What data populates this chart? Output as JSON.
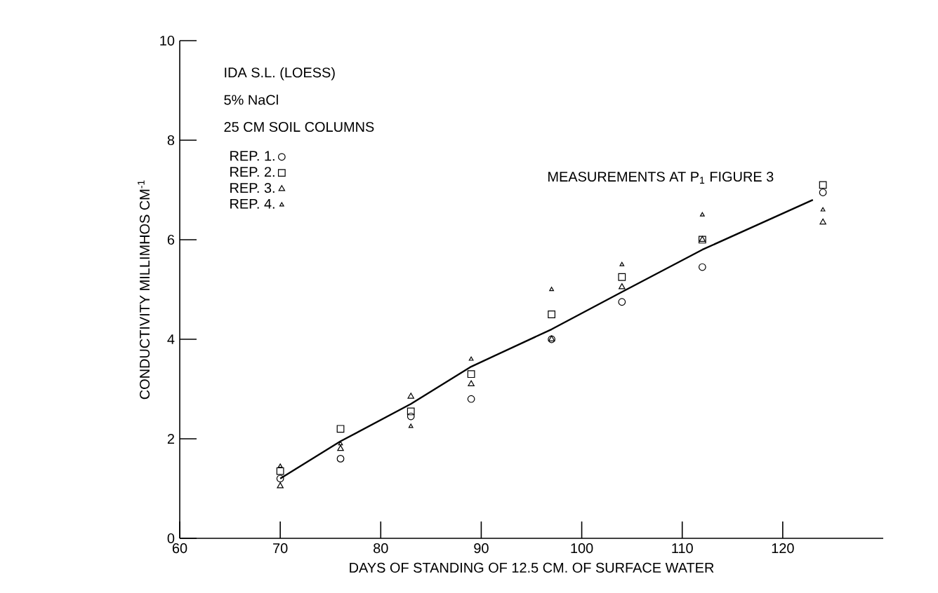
{
  "chart_data": {
    "type": "scatter",
    "xlabel": "DAYS OF STANDING OF 12.5 CM. OF SURFACE WATER",
    "ylabel": "CONDUCTIVITY MILLIMHOS CM$^{-1}$",
    "annotations": [
      "IDA S.L. (LOESS)",
      "5% NaCl",
      "25 CM SOIL COLUMNS",
      "MEASUREMENTS AT P$_{1}$ FIGURE 3"
    ],
    "x": [
      70,
      76,
      83,
      89,
      97,
      104,
      112,
      124
    ],
    "series": [
      {
        "name": "REP. 1.",
        "color": "#000000",
        "marker": "circle",
        "values": [
          1.2,
          1.6,
          2.45,
          2.8,
          4.0,
          4.75,
          5.45,
          6.95
        ]
      },
      {
        "name": "REP. 2.",
        "color": "#000000",
        "marker": "square",
        "values": [
          1.35,
          2.2,
          2.55,
          3.3,
          4.5,
          5.25,
          6.0,
          7.1
        ]
      },
      {
        "name": "REP. 3.",
        "color": "#000000",
        "marker": "triangle",
        "values": [
          1.05,
          1.8,
          2.85,
          3.1,
          4.0,
          5.05,
          6.0,
          6.35
        ]
      },
      {
        "name": "REP. 4.",
        "color": "#000000",
        "marker": "triangle",
        "values": [
          1.45,
          1.9,
          2.25,
          3.6,
          5.0,
          5.5,
          6.5,
          6.6
        ]
      },
      {
        "type": "line",
        "color": "#000000",
        "marker": "none",
        "x": [
          70,
          76,
          83,
          89,
          97,
          104,
          112,
          123
        ],
        "values": [
          1.2,
          1.95,
          2.7,
          3.45,
          4.2,
          4.95,
          5.8,
          6.8
        ]
      }
    ],
    "xlim": [
      60,
      130
    ],
    "ylim": [
      0,
      10
    ],
    "xticks": [
      60,
      70,
      80,
      90,
      100,
      110,
      120
    ],
    "yticks": [
      0,
      2,
      4,
      6,
      8,
      10
    ],
    "grid": false,
    "legend": "top left"
  }
}
